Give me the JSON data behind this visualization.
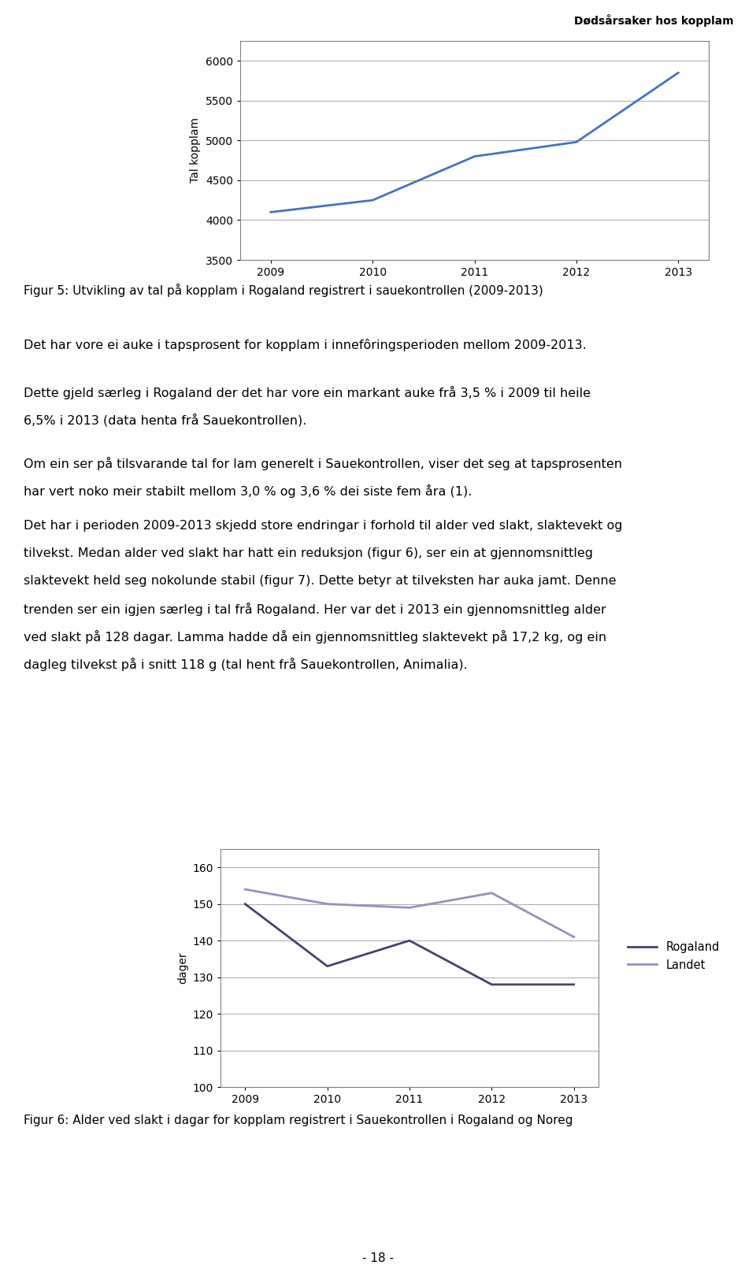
{
  "header_text": "Dødsårsaker hos kopplam",
  "chart1_years": [
    2009,
    2010,
    2011,
    2012,
    2013
  ],
  "chart1_values": [
    4100,
    4250,
    4800,
    4980,
    5850
  ],
  "chart1_ylabel": "Tal kopplam",
  "chart1_ylim": [
    3500,
    6250
  ],
  "chart1_yticks": [
    3500,
    4000,
    4500,
    5000,
    5500,
    6000
  ],
  "chart1_color": "#4472C4",
  "chart1_linewidth": 2.0,
  "fig5_caption": "Figur 5: Utvikling av tal på kopplam i Rogaland registrert i sauekontrollen (2009-2013)",
  "para1": "Det har vore ei auke i tapsprosent for kopplam i innefôringsperioden mellom 2009-2013.",
  "para2a": "Dette gjeld særleg i Rogaland der det har vore ein markant auke frå 3,5 % i 2009 til heile",
  "para2b": "6,5% i 2013 (data henta frå Sauekontrollen).",
  "para3a": "Om ein ser på tilsvarande tal for lam generelt i Sauekontrollen, viser det seg at tapsprosenten",
  "para3b": "har vert noko meir stabilt mellom 3,0 % og 3,6 % dei siste fem åra (1).",
  "para4a": "Det har i perioden 2009-2013 skjedd store endringar i forhold til alder ved slakt, slaktevekt og",
  "para4b": "tilvekst. Medan alder ved slakt har hatt ein reduksjon (figur 6), ser ein at gjennomsnittleg",
  "para4c": "slaktevekt held seg nokolunde stabil (figur 7). Dette betyr at tilveksten har auka jamt. Denne",
  "para4d": "trenden ser ein igjen særleg i tal frå Rogaland. Her var det i 2013 ein gjennomsnittleg alder",
  "para4e": "ved slakt på 128 dagar. Lamma hadde då ein gjennomsnittleg slaktevekt på 17,2 kg, og ein",
  "para4f": "dagleg tilvekst på i snitt 118 g (tal hent frå Sauekontrollen, Animalia).",
  "chart2_years": [
    2009,
    2010,
    2011,
    2012,
    2013
  ],
  "chart2_rogaland": [
    150,
    133,
    140,
    128,
    128
  ],
  "chart2_landet": [
    154,
    150,
    149,
    153,
    141
  ],
  "chart2_ylabel": "dager",
  "chart2_ylim": [
    100,
    165
  ],
  "chart2_yticks": [
    100,
    110,
    120,
    130,
    140,
    150,
    160
  ],
  "chart2_color_rogaland": "#4B3F72",
  "chart2_color_landet": "#9B8DC0",
  "chart2_linewidth": 2.0,
  "chart2_legend_rogaland": "Rogaland",
  "chart2_legend_landet": "Landet",
  "fig6_caption": "Figur 6: Alder ved slakt i dagar for kopplam registrert i Sauekontrollen i Rogaland og Noreg",
  "page_number": "- 18 -",
  "background_color": "#ffffff",
  "text_color": "#000000",
  "grid_color": "#B0B0B0",
  "chart_bg": "#ffffff",
  "chart_border": "#808080"
}
